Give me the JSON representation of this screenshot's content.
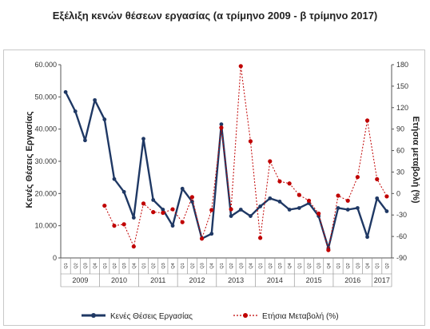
{
  "chart_data": {
    "type": "line",
    "title": "Εξέλιξη κενών θέσεων εργασίας (α τρίμηνο 2009 - β τρίμηνο 2017)",
    "quarter_labels": [
      "Q1",
      "Q2",
      "Q3",
      "Q4"
    ],
    "years": [
      "2009",
      "2010",
      "2011",
      "2012",
      "2013",
      "2014",
      "2015",
      "2016",
      "2017"
    ],
    "x": [
      "2009 Q1",
      "2009 Q2",
      "2009 Q3",
      "2009 Q4",
      "2010 Q1",
      "2010 Q2",
      "2010 Q3",
      "2010 Q4",
      "2011 Q1",
      "2011 Q2",
      "2011 Q3",
      "2011 Q4",
      "2012 Q1",
      "2012 Q2",
      "2012 Q3",
      "2012 Q4",
      "2013 Q1",
      "2013 Q2",
      "2013 Q3",
      "2013 Q4",
      "2014 Q1",
      "2014 Q2",
      "2014 Q3",
      "2014 Q4",
      "2015 Q1",
      "2015 Q2",
      "2015 Q3",
      "2015 Q4",
      "2016 Q1",
      "2016 Q2",
      "2016 Q3",
      "2016 Q4",
      "2017 Q1",
      "2017 Q2"
    ],
    "ylabel_left": "Κενές Θέσεις Εργασίας",
    "ylabel_right": "Ετήσια μεταβολή (%)",
    "ylim_left": [
      0,
      60000
    ],
    "ylim_right": [
      -90,
      180
    ],
    "yticks_left": [
      "0",
      "10.000",
      "20.000",
      "30.000",
      "40.000",
      "50.000",
      "60.000"
    ],
    "yticks_right": [
      "-90",
      "-60",
      "-30",
      "0",
      "30",
      "60",
      "90",
      "120",
      "150",
      "180"
    ],
    "series": [
      {
        "name": "Κενές Θέσεις Εργασίας",
        "axis": "left",
        "color": "#1f3864",
        "values": [
          51500,
          45500,
          36500,
          49000,
          43000,
          24500,
          20500,
          12500,
          37000,
          18000,
          15000,
          10000,
          21500,
          17500,
          6000,
          7500,
          41500,
          13000,
          15000,
          13000,
          16000,
          18500,
          17500,
          15000,
          15500,
          17000,
          13000,
          3000,
          15500,
          15000,
          15500,
          6500,
          18500,
          14500
        ]
      },
      {
        "name": "Ετήσια Μεταβολή (%)",
        "axis": "right",
        "color": "#c00000",
        "values": [
          null,
          null,
          null,
          null,
          -17,
          -45,
          -43,
          -74,
          -14,
          -26,
          -27,
          -22,
          -40,
          -5,
          -63,
          -23,
          92,
          -22,
          178,
          73,
          -62,
          45,
          17,
          14,
          -2,
          -10,
          -28,
          -79,
          -3,
          -10,
          23,
          102,
          20,
          -4
        ]
      }
    ],
    "legend": "bottom",
    "grid": false
  }
}
